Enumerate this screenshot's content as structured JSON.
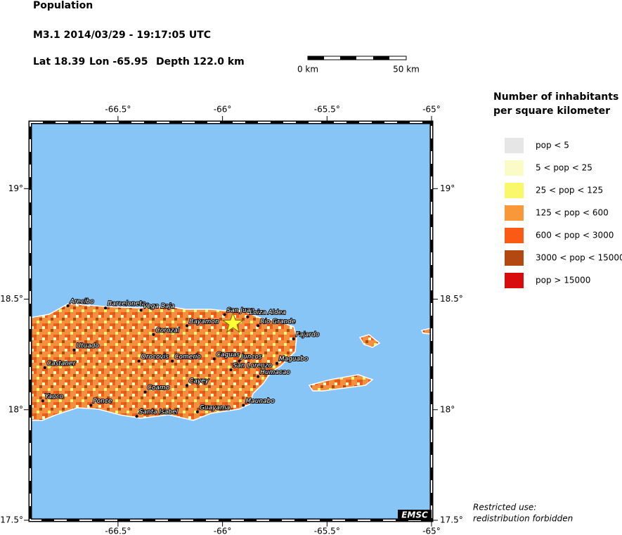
{
  "header": {
    "title": "Population",
    "event": "M3.1  2014/03/29 - 19:17:05 UTC",
    "location": [
      "Lat 18.39",
      "Lon -65.95",
      "Depth 122.0 km"
    ]
  },
  "scale_bar": {
    "labels": [
      "0 km",
      "50 km"
    ]
  },
  "map": {
    "xlim": [
      -66.92,
      -65
    ],
    "ylim": [
      17.5,
      19.3
    ],
    "xticks": [
      {
        "value": -66.5,
        "label": "-66.5°"
      },
      {
        "value": -66,
        "label": "-66°"
      },
      {
        "value": -65.5,
        "label": "-65.5°"
      },
      {
        "value": -65,
        "label": "-65°"
      }
    ],
    "yticks": [
      {
        "value": 17.5,
        "label": "17.5°"
      },
      {
        "value": 18,
        "label": "18°"
      },
      {
        "value": 18.5,
        "label": "18.5°"
      },
      {
        "value": 19,
        "label": "19°"
      }
    ],
    "ocean_color": "#87c5f7",
    "epicenter": {
      "lon": -65.95,
      "lat": 18.39
    },
    "cities": [
      {
        "name": "Arecibo",
        "lon": -66.74,
        "lat": 18.47
      },
      {
        "name": "Barceloneta",
        "lon": -66.56,
        "lat": 18.46
      },
      {
        "name": "Vega Baja",
        "lon": -66.39,
        "lat": 18.45
      },
      {
        "name": "Bayamon",
        "lon": -66.17,
        "lat": 18.38
      },
      {
        "name": "San Juan",
        "lon": -65.99,
        "lat": 18.43
      },
      {
        "name": "Loiza Aldea",
        "lon": -65.88,
        "lat": 18.42
      },
      {
        "name": "Rio Grande",
        "lon": -65.83,
        "lat": 18.38
      },
      {
        "name": "Fajardo",
        "lon": -65.66,
        "lat": 18.32
      },
      {
        "name": "Corozal",
        "lon": -66.33,
        "lat": 18.34
      },
      {
        "name": "Utuado",
        "lon": -66.71,
        "lat": 18.27
      },
      {
        "name": "Castaner",
        "lon": -66.85,
        "lat": 18.19
      },
      {
        "name": "Orocovis",
        "lon": -66.4,
        "lat": 18.22
      },
      {
        "name": "Comerio",
        "lon": -66.24,
        "lat": 18.22
      },
      {
        "name": "Caguas",
        "lon": -66.04,
        "lat": 18.23
      },
      {
        "name": "Juncos",
        "lon": -65.92,
        "lat": 18.22
      },
      {
        "name": "San Lorenzo",
        "lon": -65.96,
        "lat": 18.18
      },
      {
        "name": "Humacao",
        "lon": -65.83,
        "lat": 18.15
      },
      {
        "name": "Maguabo",
        "lon": -65.74,
        "lat": 18.21
      },
      {
        "name": "Cayey",
        "lon": -66.17,
        "lat": 18.11
      },
      {
        "name": "Coamo",
        "lon": -66.37,
        "lat": 18.08
      },
      {
        "name": "Maunabo",
        "lon": -65.9,
        "lat": 18.02
      },
      {
        "name": "Guayama",
        "lon": -66.12,
        "lat": 17.99
      },
      {
        "name": "Santa Isabel",
        "lon": -66.41,
        "lat": 17.97
      },
      {
        "name": "Ponce",
        "lon": -66.63,
        "lat": 18.02
      },
      {
        "name": "Yauco",
        "lon": -66.86,
        "lat": 18.04
      }
    ],
    "credit": "EMSC"
  },
  "legend": {
    "title": [
      "Number of inhabitants",
      "per square kilometer"
    ],
    "items": [
      {
        "label": "pop < 5",
        "color": "#e6e6e6"
      },
      {
        "label": "5 < pop < 25",
        "color": "#fbfbc8"
      },
      {
        "label": "25 < pop < 125",
        "color": "#f8f86a"
      },
      {
        "label": "125 < pop < 600",
        "color": "#f89838"
      },
      {
        "label": "600 < pop < 3000",
        "color": "#fb5a14"
      },
      {
        "label": "3000 < pop < 15000",
        "color": "#b34810"
      },
      {
        "label": "pop > 15000",
        "color": "#d80c0c"
      }
    ]
  },
  "footer": [
    "Restricted use:",
    "redistribution forbidden"
  ]
}
